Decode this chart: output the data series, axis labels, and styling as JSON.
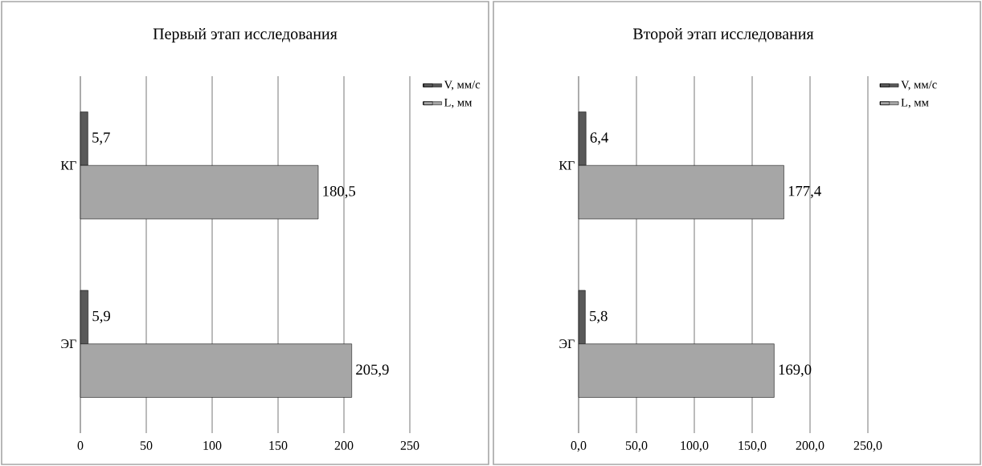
{
  "chart_data": [
    {
      "type": "bar",
      "orientation": "horizontal",
      "title": "Первый этап исследования",
      "categories": [
        "КГ",
        "ЭГ"
      ],
      "series": [
        {
          "name": "V, мм/с",
          "color": "#595959",
          "values": [
            5.7,
            5.9
          ],
          "value_labels": [
            "5,7",
            "5,9"
          ]
        },
        {
          "name": "L, мм",
          "color": "#a6a6a6",
          "values": [
            180.5,
            205.9
          ],
          "value_labels": [
            "180,5",
            "205,9"
          ]
        }
      ],
      "xlim": [
        0,
        250
      ],
      "xticks": [
        0,
        50,
        100,
        150,
        200,
        250
      ],
      "grid": "x",
      "legend": "top right"
    },
    {
      "type": "bar",
      "orientation": "horizontal",
      "title": "Второй этап исследования",
      "categories": [
        "КГ",
        "ЭГ"
      ],
      "series": [
        {
          "name": "V, мм/с",
          "color": "#595959",
          "values": [
            6.4,
            5.8
          ],
          "value_labels": [
            "6,4",
            "5,8"
          ]
        },
        {
          "name": "L, мм",
          "color": "#a6a6a6",
          "values": [
            177.4,
            169.0
          ],
          "value_labels": [
            "177,4",
            "169,0"
          ]
        }
      ],
      "xlim": [
        0,
        250
      ],
      "xticks": [
        {
          "value": 0,
          "label": "0,0"
        },
        {
          "value": 50,
          "label": "50,0"
        },
        {
          "value": 100,
          "label": "100,0"
        },
        {
          "value": 150,
          "label": "150,0"
        },
        {
          "value": 200,
          "label": "200,0"
        },
        {
          "value": 250,
          "label": "250,0"
        }
      ],
      "grid": "x",
      "legend": "top right"
    }
  ]
}
